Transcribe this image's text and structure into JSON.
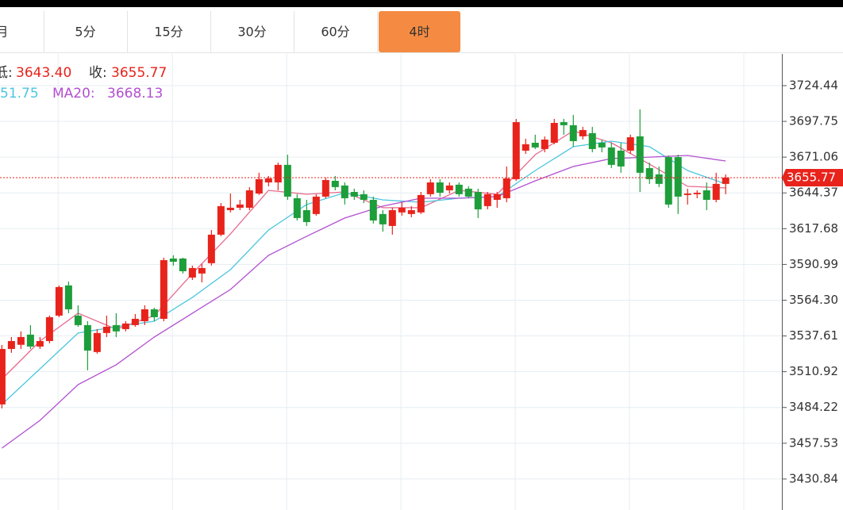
{
  "tabs": [
    "月",
    "5分",
    "15分",
    "30分",
    "60分",
    "4时"
  ],
  "active_tab": 5,
  "info": {
    "line1": [
      "低:",
      "3643.40",
      "收:",
      "3655.77"
    ],
    "line2": [
      "51.75",
      "MA20:",
      "3668.13"
    ]
  },
  "chart_data": {
    "type": "candlestick",
    "categories": [
      null,
      null,
      null,
      null,
      null,
      null,
      null,
      null,
      null,
      null,
      null,
      null,
      null,
      null,
      null,
      null,
      null,
      null,
      null,
      null,
      null,
      null,
      null,
      null,
      null,
      null,
      null,
      null,
      null,
      null,
      null,
      null,
      null,
      null,
      null,
      null,
      null,
      null,
      null,
      null,
      null,
      null,
      null,
      null,
      null,
      null,
      null,
      null,
      null,
      null,
      null,
      null,
      null,
      null,
      null,
      null,
      null,
      null,
      null,
      null,
      null,
      null,
      null,
      null,
      null,
      null,
      null,
      null,
      null,
      null,
      null,
      null,
      null,
      null,
      null,
      null,
      null
    ],
    "open": [
      3486.5,
      3527.9,
      3531.0,
      3538.6,
      3529.7,
      3533.8,
      3552.8,
      3575.3,
      3552.8,
      3545.7,
      3525.6,
      3539.8,
      3545.7,
      3542.7,
      3545.7,
      3548.6,
      3557.5,
      3550.4,
      3595.4,
      3595.4,
      3581.2,
      3584.2,
      3591.9,
      3613.2,
      3631.5,
      3633.3,
      3633.3,
      3643.9,
      3652.2,
      3652.2,
      3665.3,
      3640.4,
      3631.5,
      3628.6,
      3641.6,
      3653.4,
      3649.9,
      3645.1,
      3643.4,
      3639.2,
      3628.6,
      3619.7,
      3629.8,
      3628.6,
      3629.8,
      3643.4,
      3652.2,
      3646.3,
      3650.5,
      3647.5,
      3645.1,
      3634.5,
      3639.2,
      3640.4,
      3654.6,
      3675.9,
      3681.8,
      3677.1,
      3681.8,
      3697.2,
      3694.9,
      3686.6,
      3689.0,
      3681.8,
      3678.3,
      3675.9,
      3675.9,
      3686.6,
      3662.9,
      3658.2,
      3671.1,
      3671.1,
      3642.8,
      3643.4,
      3646.3,
      3639.2,
      3651.1
    ],
    "high": [
      3530.9,
      3536.8,
      3541.0,
      3545.7,
      3536.8,
      3552.8,
      3575.3,
      3578.2,
      3560.5,
      3548.6,
      3542.7,
      3552.8,
      3554.6,
      3548.6,
      3554.0,
      3560.5,
      3558.7,
      3596.0,
      3597.8,
      3596.0,
      3590.1,
      3591.3,
      3616.7,
      3636.8,
      3643.9,
      3639.2,
      3648.7,
      3659.4,
      3657.0,
      3667.0,
      3672.9,
      3643.4,
      3639.2,
      3643.4,
      3655.8,
      3657.0,
      3652.2,
      3647.5,
      3646.3,
      3641.6,
      3631.5,
      3633.3,
      3637.4,
      3634.5,
      3645.1,
      3654.6,
      3654.6,
      3652.2,
      3652.2,
      3649.3,
      3647.5,
      3645.1,
      3645.1,
      3664.1,
      3699.6,
      3684.8,
      3687.8,
      3686.5,
      3699.6,
      3699.6,
      3702.6,
      3693.7,
      3693.7,
      3684.2,
      3681.8,
      3681.8,
      3687.8,
      3706.7,
      3667.0,
      3664.1,
      3672.3,
      3672.9,
      3647.5,
      3646.3,
      3652.2,
      3659.4,
      3658.2
    ],
    "low": [
      3483.5,
      3525.0,
      3527.9,
      3527.9,
      3527.9,
      3532.1,
      3551.6,
      3554.6,
      3544.5,
      3512.0,
      3524.4,
      3536.8,
      3536.8,
      3541.0,
      3544.5,
      3545.7,
      3548.6,
      3548.6,
      3590.1,
      3584.2,
      3579.4,
      3577.6,
      3590.1,
      3612.0,
      3629.8,
      3631.5,
      3631.5,
      3642.8,
      3649.3,
      3646.3,
      3639.2,
      3623.8,
      3619.7,
      3627.4,
      3640.4,
      3646.3,
      3635.7,
      3639.2,
      3636.8,
      3621.5,
      3615.5,
      3613.2,
      3627.4,
      3626.2,
      3628.6,
      3641.6,
      3641.6,
      3643.9,
      3641.6,
      3640.4,
      3625.6,
      3632.1,
      3633.3,
      3637.4,
      3653.4,
      3673.5,
      3677.1,
      3674.7,
      3680.7,
      3687.8,
      3678.9,
      3684.2,
      3674.7,
      3674.7,
      3662.9,
      3659.4,
      3673.5,
      3645.1,
      3651.1,
      3648.7,
      3633.3,
      3628.6,
      3635.7,
      3640.4,
      3631.5,
      3637.4,
      3643.4
    ],
    "close": [
      3527.9,
      3533.8,
      3536.8,
      3529.7,
      3533.8,
      3551.6,
      3574.1,
      3557.5,
      3545.7,
      3526.7,
      3539.8,
      3544.5,
      3541.0,
      3546.9,
      3550.4,
      3557.5,
      3551.6,
      3594.2,
      3593.0,
      3585.9,
      3588.3,
      3588.3,
      3613.2,
      3634.5,
      3633.3,
      3635.7,
      3646.3,
      3654.6,
      3655.2,
      3665.3,
      3641.6,
      3625.6,
      3622.6,
      3641.6,
      3654.0,
      3648.7,
      3640.4,
      3641.6,
      3639.2,
      3623.8,
      3620.9,
      3631.5,
      3633.3,
      3631.5,
      3642.8,
      3652.2,
      3644.5,
      3649.9,
      3643.4,
      3641.6,
      3632.1,
      3643.4,
      3643.4,
      3655.2,
      3697.2,
      3680.7,
      3678.3,
      3684.2,
      3696.6,
      3694.9,
      3683.0,
      3691.3,
      3677.1,
      3678.3,
      3665.3,
      3664.1,
      3685.9,
      3659.4,
      3654.6,
      3651.1,
      3635.7,
      3641.6,
      3643.9,
      3644.5,
      3639.2,
      3651.1,
      3655.77
    ],
    "up_color": "#e8231b",
    "down_color": "#1d9e3a",
    "ma_series": [
      {
        "color": "#e86a8e",
        "x": [
          0,
          4,
          8,
          12,
          16,
          20,
          24,
          28,
          32,
          36,
          40,
          44,
          48,
          52,
          56,
          60,
          64,
          68,
          72,
          76
        ],
        "values": [
          3505.4,
          3533.8,
          3554.6,
          3542.7,
          3552.8,
          3584.2,
          3613.8,
          3646.3,
          3643.4,
          3645.1,
          3633.3,
          3633.3,
          3646.3,
          3643.4,
          3672.9,
          3690.7,
          3681.8,
          3665.9,
          3649.3,
          3648.1
        ]
      },
      {
        "color": "#4cc6df",
        "x": [
          0,
          4,
          8,
          12,
          16,
          20,
          24,
          28,
          32,
          36,
          40,
          44,
          48,
          52,
          56,
          60,
          64,
          68,
          72,
          76
        ],
        "values": [
          3486.5,
          3513.1,
          3539.8,
          3544.5,
          3548.6,
          3566.4,
          3587.1,
          3616.7,
          3635.7,
          3644.5,
          3639.2,
          3637.4,
          3640.4,
          3641.6,
          3661.1,
          3678.9,
          3683.0,
          3678.9,
          3661.1,
          3651.1
        ]
      },
      {
        "color": "#b24fd0",
        "x": [
          0,
          4,
          8,
          12,
          16,
          20,
          24,
          28,
          32,
          36,
          40,
          44,
          48,
          52,
          56,
          60,
          64,
          68,
          72,
          76
        ],
        "values": [
          3453.9,
          3474.6,
          3501.3,
          3516.1,
          3536.8,
          3554.6,
          3572.3,
          3597.8,
          3612.0,
          3625.6,
          3634.5,
          3640.4,
          3640.4,
          3641.6,
          3653.4,
          3664.1,
          3670.0,
          3671.1,
          3672.3,
          3668.2
        ]
      }
    ],
    "last_price": 3655.77,
    "last_price_color": "#e8231b",
    "xlim": [
      -0.2,
      81.9
    ],
    "xticks": [
      5.9,
      17.9,
      29.9,
      41.9,
      53.9,
      65.9,
      77.9
    ],
    "ylim": [
      3407.7,
      3748.1
    ],
    "yticks": [
      3724.44,
      3697.75,
      3671.06,
      3644.37,
      3617.68,
      3590.99,
      {
        "value": 3564.3,
        "label": "3564.30"
      },
      3537.61,
      3510.92,
      3484.22,
      3457.53,
      3430.84
    ],
    "grid": true
  }
}
